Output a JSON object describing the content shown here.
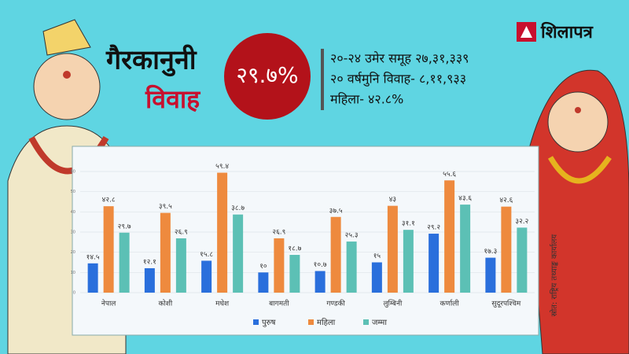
{
  "header": {
    "title_line1": "गैरकानुनी",
    "title_line2": "विवाह",
    "headline_figure": "२९.७%",
    "facts": [
      "२०-२४ उमेर समूह २७,३१,३३९",
      "२० वर्षमुनि विवाह- ८,११,९३३",
      "महिला- ४२.८%"
    ],
    "logo": "शिलापत्र"
  },
  "source": "स्रोत: राष्ट्रिय तथ्याङ्क कार्यालय",
  "chart_data": {
    "type": "bar",
    "categories": [
      "नेपाल",
      "कोशी",
      "मधेश",
      "बागमती",
      "गण्डकी",
      "लुम्बिनी",
      "कर्णाली",
      "सुदूरपश्चिम"
    ],
    "series": [
      {
        "name": "पुरुष",
        "color": "#2a6fdc",
        "values": [
          14.5,
          12.1,
          15.8,
          10,
          10.7,
          15,
          29.2,
          17.3
        ],
        "value_labels": [
          "१४.५",
          "१२.१",
          "१५.८",
          "१०",
          "१०.७",
          "१५",
          "२९.२",
          "१७.३"
        ]
      },
      {
        "name": "महिला",
        "color": "#ee8a3e",
        "values": [
          42.8,
          39.5,
          59.4,
          26.9,
          37.5,
          43,
          55.6,
          42.6
        ],
        "value_labels": [
          "४२.८",
          "३९.५",
          "५९.४",
          "२६.९",
          "३७.५",
          "४३",
          "५५.६",
          "४२.६"
        ]
      },
      {
        "name": "जम्मा",
        "color": "#5cc0b5",
        "values": [
          29.7,
          26.9,
          38.7,
          18.7,
          25.3,
          31.1,
          43.6,
          32.2
        ],
        "value_labels": [
          "२९.७",
          "२६.९",
          "३८.७",
          "१८.७",
          "२५.३",
          "३१.१",
          "४३.६",
          "३२.२"
        ]
      }
    ],
    "ylim": [
      0,
      60
    ],
    "yticks": [
      0,
      10,
      20,
      30,
      40,
      50,
      60
    ],
    "grid": true
  }
}
